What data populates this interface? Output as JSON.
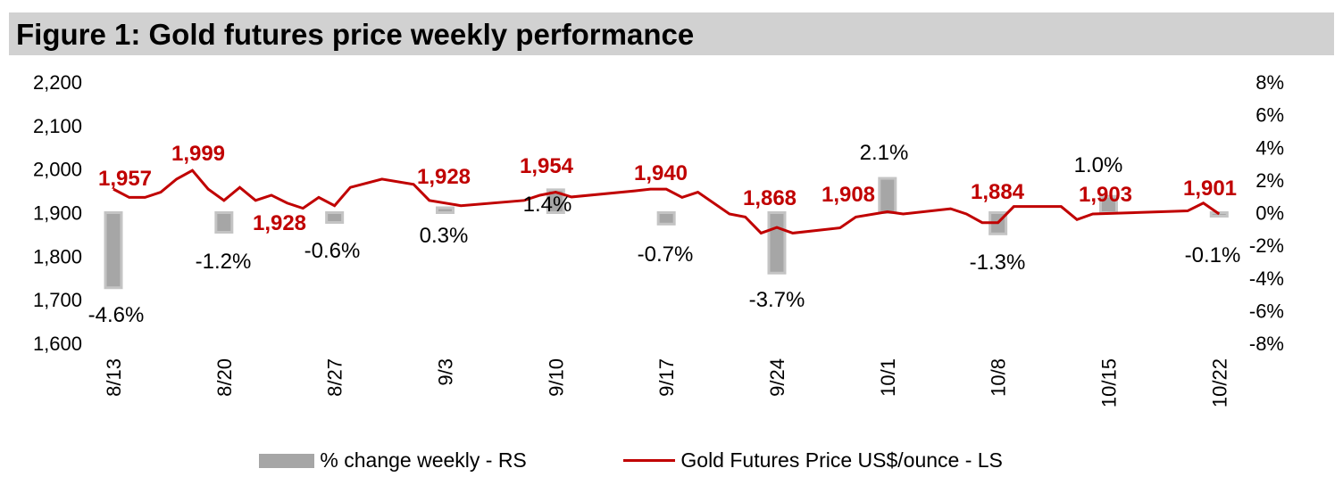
{
  "title": "Figure 1: Gold futures price weekly performance",
  "chart_data": {
    "type": "bar+line",
    "title": "Figure 1: Gold futures price weekly performance",
    "x_tick_labels": [
      "8/13",
      "8/20",
      "8/27",
      "9/3",
      "9/10",
      "9/17",
      "9/24",
      "10/1",
      "10/8",
      "10/15",
      "10/22"
    ],
    "left_axis": {
      "ticks": [
        "1,600",
        "1,700",
        "1,800",
        "1,900",
        "2,000",
        "2,100",
        "2,200"
      ],
      "range": [
        1600,
        2200
      ]
    },
    "right_axis": {
      "ticks": [
        "-8%",
        "-6%",
        "-4%",
        "-2%",
        "0%",
        "2%",
        "4%",
        "6%",
        "8%"
      ],
      "range": [
        -8,
        8
      ]
    },
    "grid": false,
    "legend_placement": "bottom",
    "series": [
      {
        "name": "% change weekly - RS",
        "type": "bar",
        "axis": "right",
        "color": "#a6a6a6",
        "x": [
          "8/13",
          "8/20",
          "8/27",
          "9/3",
          "9/10",
          "9/17",
          "9/24",
          "10/1",
          "10/8",
          "10/15",
          "10/22"
        ],
        "values": [
          -4.6,
          -1.2,
          -0.6,
          0.3,
          1.4,
          -0.7,
          -3.7,
          2.1,
          -1.3,
          1.0,
          -0.1
        ],
        "labels": [
          "-4.6%",
          "-1.2%",
          "-0.6%",
          "0.3%",
          "1.4%",
          "-0.7%",
          "-3.7%",
          "2.1%",
          "-1.3%",
          "1.0%",
          "-0.1%"
        ]
      },
      {
        "name": "Gold Futures Price US$/ounce - LS",
        "type": "line",
        "axis": "left",
        "color": "#c00000",
        "points": [
          [
            "8/13",
            1954
          ],
          [
            "8/14",
            1935
          ],
          [
            "8/15",
            1935
          ],
          [
            "8/16",
            1947
          ],
          [
            "8/17",
            1977
          ],
          [
            "8/18",
            1997
          ],
          [
            "8/19",
            1954
          ],
          [
            "8/20",
            1928
          ],
          [
            "8/21",
            1958
          ],
          [
            "8/22",
            1928
          ],
          [
            "8/23",
            1940
          ],
          [
            "8/24",
            1922
          ],
          [
            "8/25",
            1910
          ],
          [
            "8/26",
            1935
          ],
          [
            "8/27",
            1916
          ],
          [
            "8/28",
            1958
          ],
          [
            "8/30",
            1977
          ],
          [
            "9/1",
            1965
          ],
          [
            "9/2",
            1928
          ],
          [
            "9/4",
            1916
          ],
          [
            "9/8",
            1928
          ],
          [
            "9/9",
            1940
          ],
          [
            "9/10",
            1947
          ],
          [
            "9/11",
            1936
          ],
          [
            "9/15",
            1950
          ],
          [
            "9/16",
            1954
          ],
          [
            "9/17",
            1954
          ],
          [
            "9/18",
            1935
          ],
          [
            "9/19",
            1947
          ],
          [
            "9/21",
            1897
          ],
          [
            "9/22",
            1890
          ],
          [
            "9/23",
            1853
          ],
          [
            "9/24",
            1866
          ],
          [
            "9/25",
            1853
          ],
          [
            "9/28",
            1865
          ],
          [
            "9/29",
            1890
          ],
          [
            "10/1",
            1902
          ],
          [
            "10/2",
            1897
          ],
          [
            "10/5",
            1909
          ],
          [
            "10/6",
            1897
          ],
          [
            "10/7",
            1877
          ],
          [
            "10/8",
            1877
          ],
          [
            "10/9",
            1914
          ],
          [
            "10/12",
            1914
          ],
          [
            "10/13",
            1884
          ],
          [
            "10/14",
            1897
          ],
          [
            "10/20",
            1904
          ],
          [
            "10/21",
            1922
          ],
          [
            "10/22",
            1897
          ]
        ],
        "labels": [
          "1,957",
          "1,999",
          "1,928",
          "1,928",
          "1,954",
          "1,940",
          "1,868",
          "1,908",
          "1,884",
          "1,903",
          "1,901"
        ]
      }
    ]
  }
}
